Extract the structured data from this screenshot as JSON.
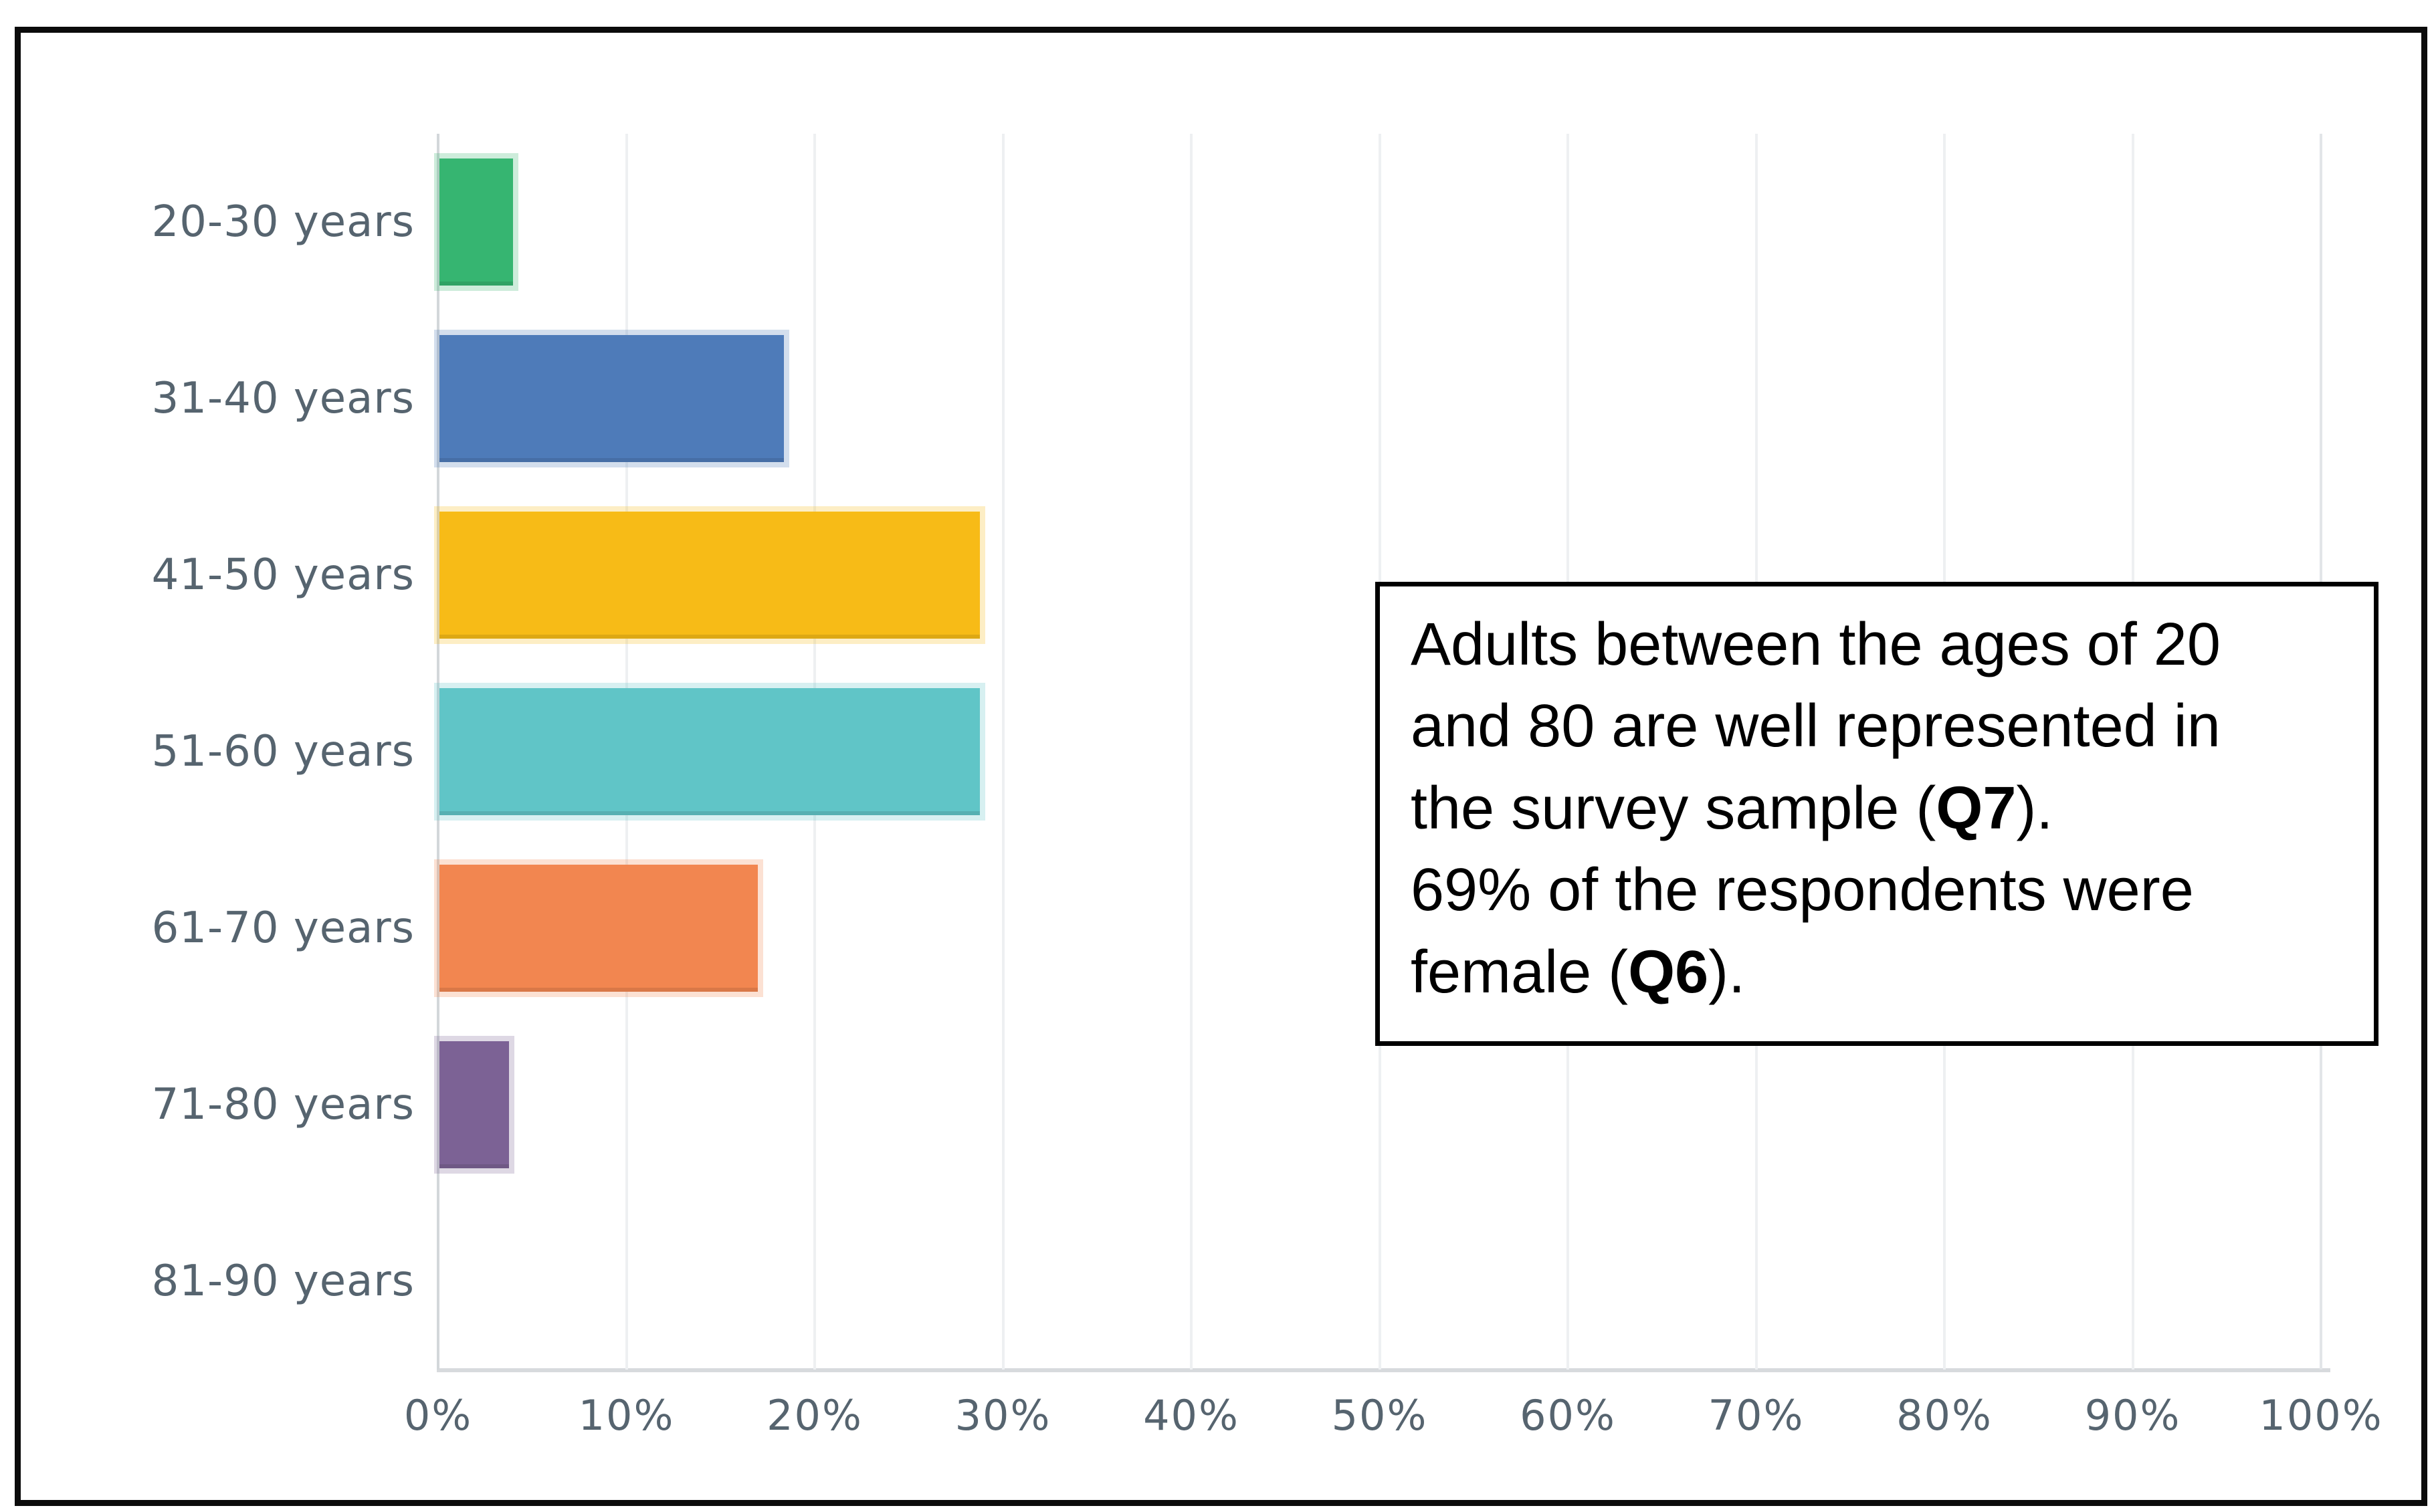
{
  "chart_data": {
    "type": "bar",
    "orientation": "horizontal",
    "title": "",
    "xlabel": "",
    "ylabel": "",
    "categories": [
      "20-30 years",
      "31-40 years",
      "41-50 years",
      "51-60 years",
      "61-70 years",
      "71-80 years",
      "81-90 years"
    ],
    "values": [
      3.9,
      18.3,
      28.7,
      28.7,
      16.9,
      3.7,
      0
    ],
    "bar_colors": [
      "#36b571",
      "#4e7bb9",
      "#f7bb17",
      "#60c5c7",
      "#f28650",
      "#7c6295",
      null
    ],
    "x_ticks": [
      "0%",
      "10%",
      "20%",
      "30%",
      "40%",
      "50%",
      "60%",
      "70%",
      "80%",
      "90%",
      "100%"
    ],
    "xlim": [
      0,
      100
    ],
    "grid": true,
    "legend": null
  },
  "annotation": {
    "segments": [
      {
        "text": "Adults between the ages of 20\nand 80 are well represented in\nthe survey sample (",
        "bold": false
      },
      {
        "text": "Q7",
        "bold": true
      },
      {
        "text": ").\n69% of the respondents were\nfemale (",
        "bold": false
      },
      {
        "text": "Q6",
        "bold": true
      },
      {
        "text": ").",
        "bold": false
      }
    ]
  },
  "colors": {
    "background": "#ffffff",
    "figure_border": "#0b0b0b",
    "axis_label_text": "#56646f",
    "tick_label_text": "#56646f",
    "gridline": "#eef0f2",
    "zero_axis_line": "#d3d7da",
    "baseline": "#d7dadd",
    "annotation_border": "#000000",
    "annotation_text": "#000000"
  }
}
